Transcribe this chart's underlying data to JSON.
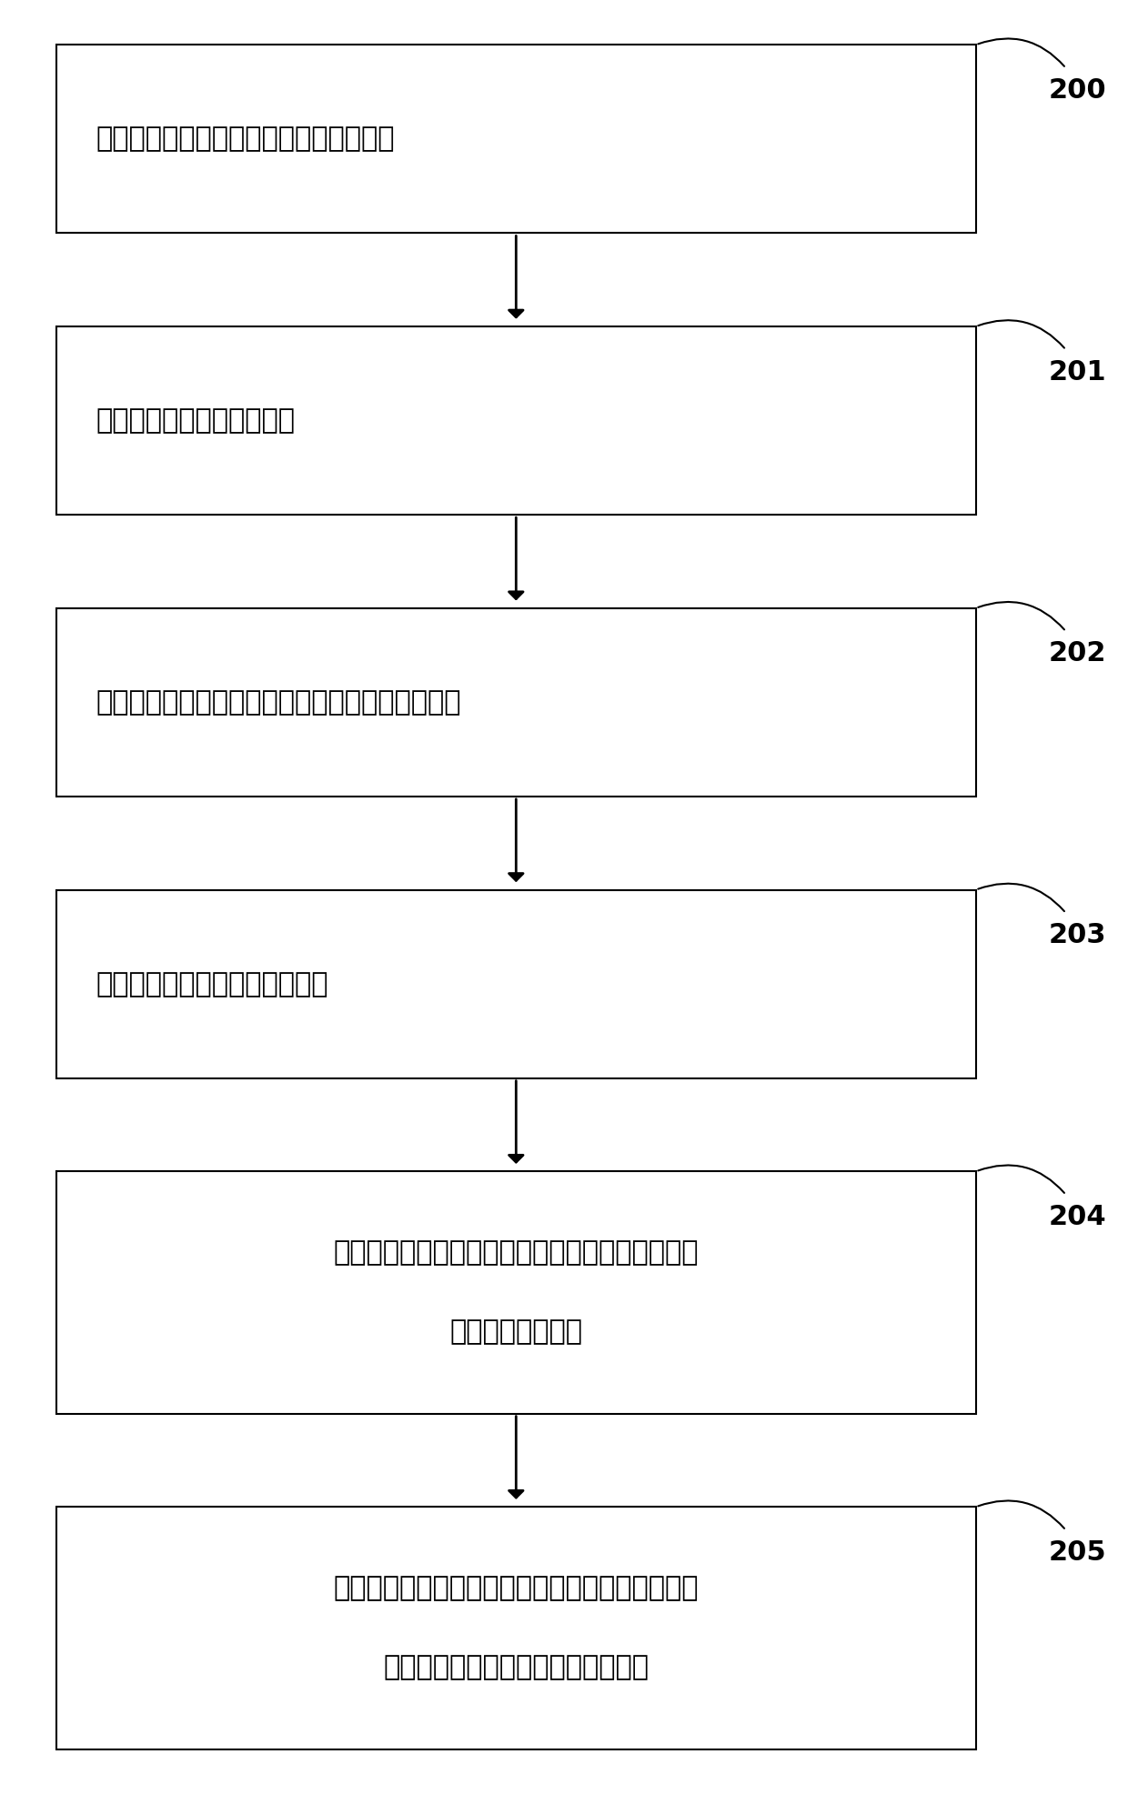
{
  "boxes": [
    {
      "id": "200",
      "lines": [
        "控制第二药液的流量维持在一设定经验值"
      ],
      "nlines": 1
    },
    {
      "id": "201",
      "lines": [
        "将第一药液注入到第一容器"
      ],
      "nlines": 1
    },
    {
      "id": "202",
      "lines": [
        "在注入第一药液的同时，将第二药液注入第一容器"
      ],
      "nlines": 1
    },
    {
      "id": "203",
      "lines": [
        "实时获取第一药液的第一流量值"
      ],
      "nlines": 1
    },
    {
      "id": "204",
      "lines": [
        "根据第一流量值和预设的药液比例值计算获得第二",
        "药液的第二流量值"
      ],
      "nlines": 2
    },
    {
      "id": "205",
      "lines": [
        "根据第二流量值，将第二药液的流量维持在以第二",
        "流量值为中心的第一预设数值范围内"
      ],
      "nlines": 2
    }
  ],
  "box_color": "#ffffff",
  "box_edgecolor": "#000000",
  "arrow_color": "#000000",
  "label_color": "#000000",
  "id_color": "#000000",
  "background_color": "#ffffff",
  "fig_width": 12.4,
  "fig_height": 19.73
}
